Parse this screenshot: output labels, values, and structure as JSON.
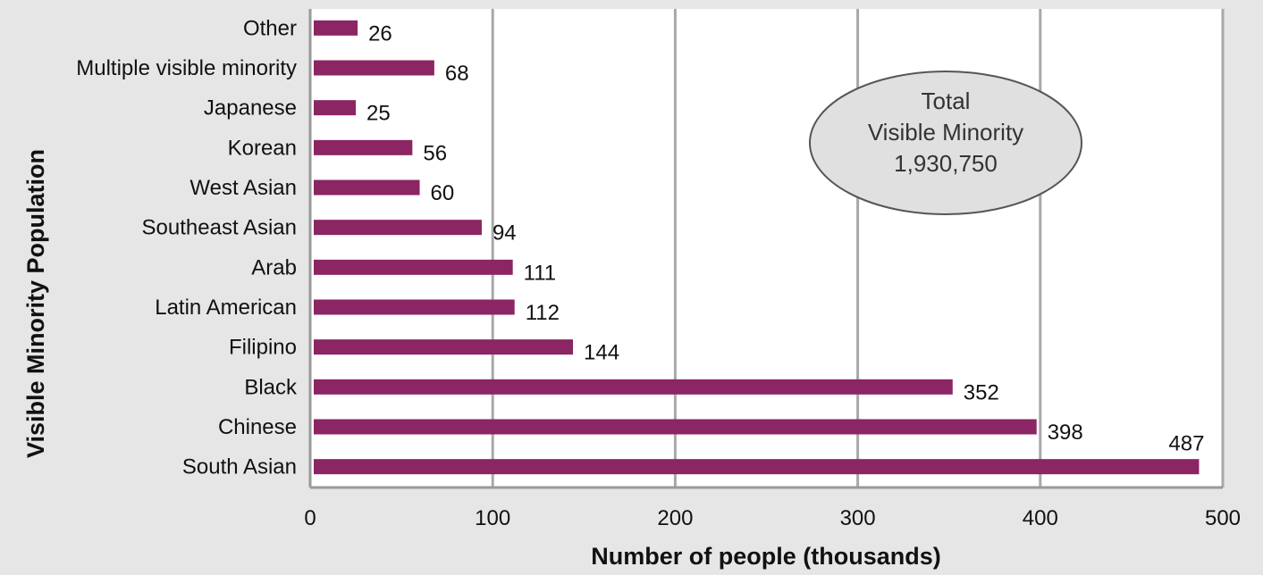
{
  "chart_data": {
    "type": "bar",
    "orientation": "horizontal",
    "categories": [
      "Other",
      "Multiple visible minority",
      "Japanese",
      "Korean",
      "West Asian",
      "Southeast Asian",
      "Arab",
      "Latin American",
      "Filipino",
      "Black",
      "Chinese",
      "South Asian"
    ],
    "values": [
      26,
      68,
      25,
      56,
      60,
      94,
      111,
      112,
      144,
      352,
      398,
      487
    ],
    "xlabel": "Number of people (thousands)",
    "ylabel": "Visible Minority Population",
    "xlim": [
      0,
      500
    ],
    "x_ticks": [
      "0",
      "100",
      "200",
      "300",
      "400",
      "500"
    ],
    "grid": "vertical",
    "bar_color": "#8b2563",
    "annotation": {
      "lines": [
        "Total",
        "Visible Minority",
        "1,930,750"
      ]
    }
  }
}
